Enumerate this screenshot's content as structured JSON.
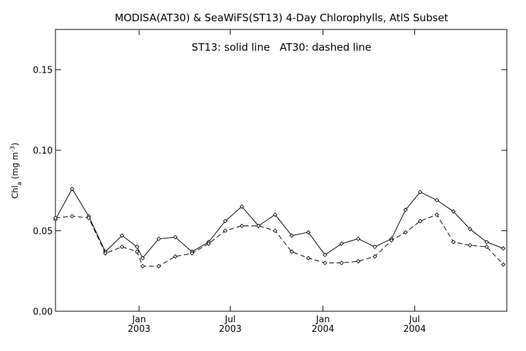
{
  "chart_data": {
    "type": "line",
    "title": "MODISA(AT30) & SeaWiFS(ST13) 4-Day Chlorophylls, AtlS Subset",
    "annotation": "ST13: solid line   AT30: dashed line",
    "ylabel": {
      "main": "Chl",
      "sub": "a",
      "units_open": " (mg m",
      "units_sup": "-3",
      "units_close": ")"
    },
    "ylim": [
      0.0,
      0.175
    ],
    "yticks": [
      {
        "value": 0.0,
        "label": "0.00"
      },
      {
        "value": 0.05,
        "label": "0.05"
      },
      {
        "value": 0.1,
        "label": "0.10"
      },
      {
        "value": 0.15,
        "label": "0.15"
      }
    ],
    "xlim": [
      "2002-07-19",
      "2004-12-31"
    ],
    "xticks": [
      {
        "date": "2003-01-01",
        "month": "Jan",
        "year": "2003"
      },
      {
        "date": "2003-07-01",
        "month": "Jul",
        "year": "2003"
      },
      {
        "date": "2004-01-01",
        "month": "Jan",
        "year": "2004"
      },
      {
        "date": "2004-07-01",
        "month": "Jul",
        "year": "2004"
      }
    ],
    "legend": "none",
    "grid": false,
    "series": [
      {
        "name": "ST13",
        "style": "solid",
        "color": "#000000",
        "points": [
          {
            "x": "2002-07-19",
            "y": 0.057
          },
          {
            "x": "2002-08-21",
            "y": 0.076
          },
          {
            "x": "2002-09-23",
            "y": 0.059
          },
          {
            "x": "2002-10-26",
            "y": 0.037
          },
          {
            "x": "2002-11-28",
            "y": 0.047
          },
          {
            "x": "2002-12-28",
            "y": 0.04
          },
          {
            "x": "2003-01-08",
            "y": 0.033
          },
          {
            "x": "2003-02-09",
            "y": 0.045
          },
          {
            "x": "2003-03-14",
            "y": 0.046
          },
          {
            "x": "2003-04-16",
            "y": 0.037
          },
          {
            "x": "2003-05-19",
            "y": 0.043
          },
          {
            "x": "2003-06-21",
            "y": 0.056
          },
          {
            "x": "2003-07-24",
            "y": 0.065
          },
          {
            "x": "2003-08-26",
            "y": 0.053
          },
          {
            "x": "2003-09-28",
            "y": 0.06
          },
          {
            "x": "2003-10-31",
            "y": 0.047
          },
          {
            "x": "2003-12-03",
            "y": 0.049
          },
          {
            "x": "2004-01-05",
            "y": 0.035
          },
          {
            "x": "2004-02-07",
            "y": 0.042
          },
          {
            "x": "2004-03-11",
            "y": 0.045
          },
          {
            "x": "2004-04-13",
            "y": 0.04
          },
          {
            "x": "2004-05-16",
            "y": 0.045
          },
          {
            "x": "2004-06-13",
            "y": 0.063
          },
          {
            "x": "2004-07-12",
            "y": 0.074
          },
          {
            "x": "2004-08-14",
            "y": 0.069
          },
          {
            "x": "2004-09-16",
            "y": 0.062
          },
          {
            "x": "2004-10-19",
            "y": 0.051
          },
          {
            "x": "2004-11-21",
            "y": 0.043
          },
          {
            "x": "2004-12-24",
            "y": 0.039
          }
        ]
      },
      {
        "name": "AT30",
        "style": "dashed",
        "color": "#000000",
        "points": [
          {
            "x": "2002-07-19",
            "y": 0.058
          },
          {
            "x": "2002-08-21",
            "y": 0.059
          },
          {
            "x": "2002-09-23",
            "y": 0.058
          },
          {
            "x": "2002-10-26",
            "y": 0.036
          },
          {
            "x": "2002-11-28",
            "y": 0.04
          },
          {
            "x": "2002-12-28",
            "y": 0.037
          },
          {
            "x": "2003-01-08",
            "y": 0.028
          },
          {
            "x": "2003-02-09",
            "y": 0.028
          },
          {
            "x": "2003-03-14",
            "y": 0.034
          },
          {
            "x": "2003-04-16",
            "y": 0.036
          },
          {
            "x": "2003-05-19",
            "y": 0.042
          },
          {
            "x": "2003-06-21",
            "y": 0.05
          },
          {
            "x": "2003-07-24",
            "y": 0.053
          },
          {
            "x": "2003-08-26",
            "y": 0.053
          },
          {
            "x": "2003-09-28",
            "y": 0.05
          },
          {
            "x": "2003-10-31",
            "y": 0.037
          },
          {
            "x": "2003-12-03",
            "y": 0.033
          },
          {
            "x": "2004-01-05",
            "y": 0.03
          },
          {
            "x": "2004-02-07",
            "y": 0.03
          },
          {
            "x": "2004-03-11",
            "y": 0.031
          },
          {
            "x": "2004-04-13",
            "y": 0.034
          },
          {
            "x": "2004-05-16",
            "y": 0.044
          },
          {
            "x": "2004-06-13",
            "y": 0.049
          },
          {
            "x": "2004-07-12",
            "y": 0.056
          },
          {
            "x": "2004-08-14",
            "y": 0.06
          },
          {
            "x": "2004-09-16",
            "y": 0.043
          },
          {
            "x": "2004-10-19",
            "y": 0.041
          },
          {
            "x": "2004-11-21",
            "y": 0.04
          },
          {
            "x": "2004-12-24",
            "y": 0.029
          }
        ]
      }
    ]
  }
}
